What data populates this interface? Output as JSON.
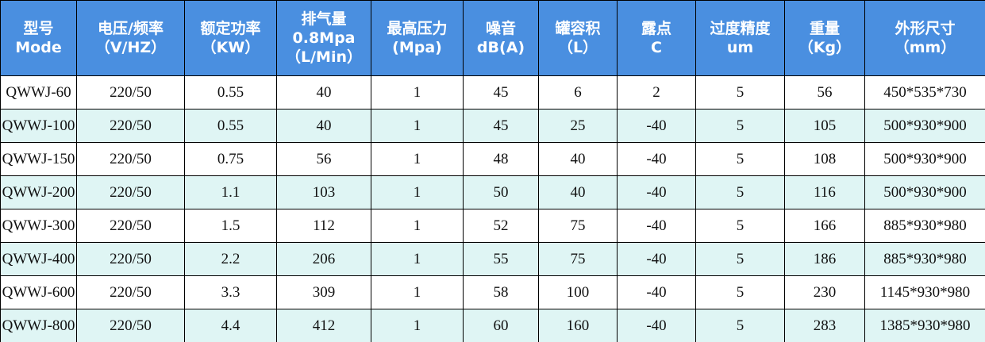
{
  "table": {
    "header": [
      [
        "型号",
        "Mode"
      ],
      [
        "电压/频率",
        "（V/HZ）"
      ],
      [
        "额定功率",
        "（KW）"
      ],
      [
        "排气量",
        "0.8Mpa",
        "（L/Min）"
      ],
      [
        "最高压力",
        "(Mpa)"
      ],
      [
        "噪音",
        "dB(A)"
      ],
      [
        "罐容积",
        "（L）"
      ],
      [
        "露点",
        "C"
      ],
      [
        "过度精度",
        "um"
      ],
      [
        "重量",
        "（Kg）"
      ],
      [
        "外形尺寸",
        "（mm）"
      ]
    ],
    "rows": [
      [
        "QWWJ-60",
        "220/50",
        "0.55",
        "40",
        "1",
        "45",
        "6",
        "2",
        "5",
        "56",
        "450*535*730"
      ],
      [
        "QWWJ-100",
        "220/50",
        "0.55",
        "40",
        "1",
        "45",
        "25",
        "-40",
        "5",
        "105",
        "500*930*900"
      ],
      [
        "QWWJ-150",
        "220/50",
        "0.75",
        "56",
        "1",
        "48",
        "40",
        "-40",
        "5",
        "108",
        "500*930*900"
      ],
      [
        "QWWJ-200",
        "220/50",
        "1.1",
        "103",
        "1",
        "50",
        "40",
        "-40",
        "5",
        "116",
        "500*930*900"
      ],
      [
        "QWWJ-300",
        "220/50",
        "1.5",
        "112",
        "1",
        "52",
        "75",
        "-40",
        "5",
        "166",
        "885*930*980"
      ],
      [
        "QWWJ-400",
        "220/50",
        "2.2",
        "206",
        "1",
        "55",
        "75",
        "-40",
        "5",
        "186",
        "885*930*980"
      ],
      [
        "QWWJ-600",
        "220/50",
        "3.3",
        "309",
        "1",
        "58",
        "100",
        "-40",
        "5",
        "230",
        "1145*930*980"
      ],
      [
        "QWWJ-800",
        "220/50",
        "4.4",
        "412",
        "1",
        "60",
        "160",
        "-40",
        "5",
        "283",
        "1385*930*980"
      ]
    ]
  }
}
